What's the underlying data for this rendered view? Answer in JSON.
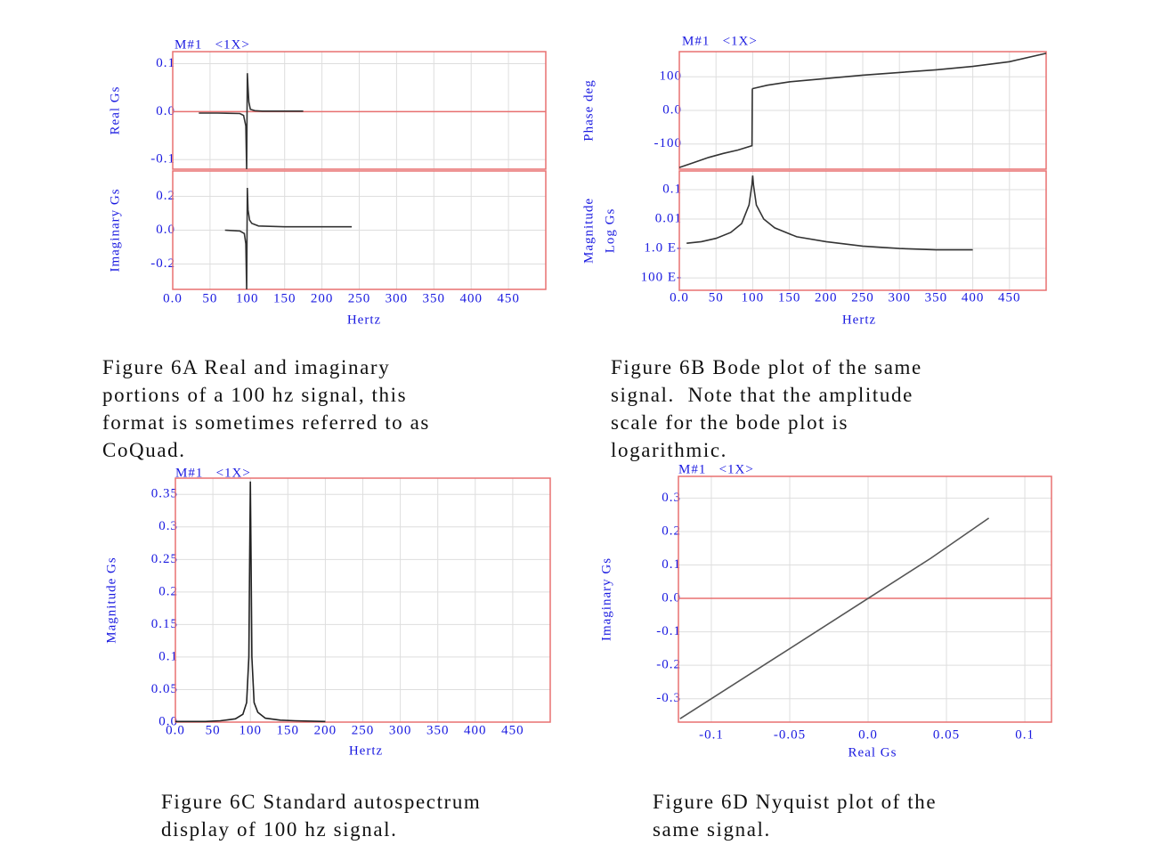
{
  "chart_data": [
    {
      "type": "line",
      "annotation": "M#1   <1X>",
      "y_label": [
        "Real Gs"
      ],
      "color": "#333333",
      "zero_line": true,
      "xlim": [
        0,
        500
      ],
      "ylim": [
        -0.12,
        0.125
      ],
      "yticks": [
        0.1,
        {
          "value": 0,
          "label": "0.0"
        },
        -0.1
      ],
      "x": [
        35,
        60,
        90,
        95,
        98,
        99,
        100,
        101,
        102,
        104,
        110,
        120,
        150,
        175
      ],
      "values": [
        -0.003,
        -0.003,
        -0.004,
        -0.008,
        -0.03,
        -0.12,
        0.08,
        0.05,
        0.02,
        0.005,
        0.002,
        0.001,
        0.001,
        0.001
      ]
    },
    {
      "type": "line",
      "y_label": [
        "Imaginary Gs"
      ],
      "x_label": "Hertz",
      "color": "#333333",
      "xlim": [
        0,
        500
      ],
      "ylim": [
        -0.35,
        0.35
      ],
      "xticks": [
        {
          "value": 0,
          "label": "0.0"
        },
        50,
        100,
        150,
        200,
        250,
        300,
        350,
        400,
        450
      ],
      "yticks": [
        0.2,
        {
          "value": 0,
          "label": "0.0"
        },
        -0.2
      ],
      "x": [
        70,
        90,
        96,
        98,
        99,
        100,
        101,
        103,
        106,
        115,
        150,
        200,
        240
      ],
      "values": [
        0,
        -0.005,
        -0.02,
        -0.08,
        -0.35,
        0.25,
        0.12,
        0.06,
        0.04,
        0.025,
        0.02,
        0.02,
        0.02
      ]
    },
    {
      "type": "line",
      "annotation": "M#1   <1X>",
      "y_label": [
        "Phase deg"
      ],
      "color": "#333333",
      "xlim": [
        0,
        500
      ],
      "ylim": [
        -175,
        175
      ],
      "yticks": [
        100,
        {
          "value": 0,
          "label": "0.0"
        },
        -100
      ],
      "x": [
        0,
        20,
        40,
        60,
        80,
        99,
        99.5,
        100,
        120,
        150,
        200,
        250,
        300,
        350,
        400,
        450,
        500
      ],
      "values": [
        -170,
        -155,
        -140,
        -128,
        -118,
        -105,
        62,
        65,
        75,
        85,
        95,
        105,
        113,
        121,
        131,
        145,
        170
      ]
    },
    {
      "type": "line",
      "y_label": [
        "Magnitude",
        "Log Gs"
      ],
      "x_label": "Hertz",
      "color": "#333333",
      "log_y": true,
      "xlim": [
        0,
        500
      ],
      "ylim": [
        3.8e-05,
        0.43
      ],
      "xticks": [
        {
          "value": 0,
          "label": "0.0"
        },
        50,
        100,
        150,
        200,
        250,
        300,
        350,
        400,
        450
      ],
      "yticks": [
        0.1,
        0.01,
        {
          "value": 0.001,
          "label": "1.0 E-"
        },
        {
          "value": 0.0001,
          "label": "100 E-"
        }
      ],
      "x": [
        10,
        30,
        50,
        70,
        85,
        95,
        99,
        100,
        101,
        105,
        115,
        130,
        160,
        200,
        250,
        300,
        350,
        400
      ],
      "values": [
        0.0015,
        0.0017,
        0.0022,
        0.0035,
        0.007,
        0.03,
        0.15,
        0.3,
        0.15,
        0.03,
        0.01,
        0.005,
        0.0025,
        0.0017,
        0.0012,
        0.001,
        0.0009,
        0.0009
      ]
    },
    {
      "type": "line",
      "annotation": "M#1   <1X>",
      "y_label": [
        "Magnitude Gs"
      ],
      "x_label": "Hertz",
      "color": "#222222",
      "xlim": [
        0,
        500
      ],
      "ylim": [
        0,
        0.375
      ],
      "xticks": [
        {
          "value": 0,
          "label": "0.0"
        },
        50,
        100,
        150,
        200,
        250,
        300,
        350,
        400,
        450
      ],
      "yticks": [
        {
          "value": 0,
          "label": "0.0"
        },
        0.05,
        0.1,
        0.15,
        0.2,
        0.25,
        0.3,
        0.35
      ],
      "x": [
        0,
        40,
        60,
        80,
        90,
        95,
        98,
        99,
        100,
        101,
        102,
        105,
        110,
        120,
        140,
        160,
        200
      ],
      "values": [
        0.001,
        0.001,
        0.002,
        0.005,
        0.012,
        0.03,
        0.1,
        0.25,
        0.37,
        0.25,
        0.1,
        0.03,
        0.015,
        0.006,
        0.003,
        0.002,
        0.001
      ]
    },
    {
      "type": "line",
      "annotation": "M#1   <1X>",
      "y_label": [
        "Imaginary Gs"
      ],
      "x_label": "Real Gs",
      "color": "#555555",
      "zero_line": true,
      "xlim": [
        -0.121,
        0.117
      ],
      "ylim": [
        -0.37,
        0.365
      ],
      "xticks": [
        -0.1,
        -0.05,
        {
          "value": 0,
          "label": "0.0"
        },
        0.05,
        0.1
      ],
      "yticks": [
        0.3,
        0.2,
        0.1,
        {
          "value": 0,
          "label": "0.0"
        },
        -0.1,
        -0.2,
        -0.3
      ],
      "x": [
        -0.12,
        -0.06,
        0,
        0.04,
        0.077
      ],
      "values": [
        -0.36,
        -0.18,
        0.0,
        0.12,
        0.24
      ]
    }
  ],
  "captions": [
    [
      "Figure 6A Real and imaginary",
      "portions of a 100 hz signal, this",
      "format is sometimes referred to as",
      "CoQuad."
    ],
    [
      "Figure 6B Bode plot of the same",
      "signal.  Note that the amplitude",
      "scale for the bode plot is",
      "logarithmic."
    ],
    [
      "Figure 6C Standard autospectrum",
      "display of 100 hz signal."
    ],
    [
      "Figure 6D Nyquist plot of the",
      "same signal."
    ]
  ]
}
